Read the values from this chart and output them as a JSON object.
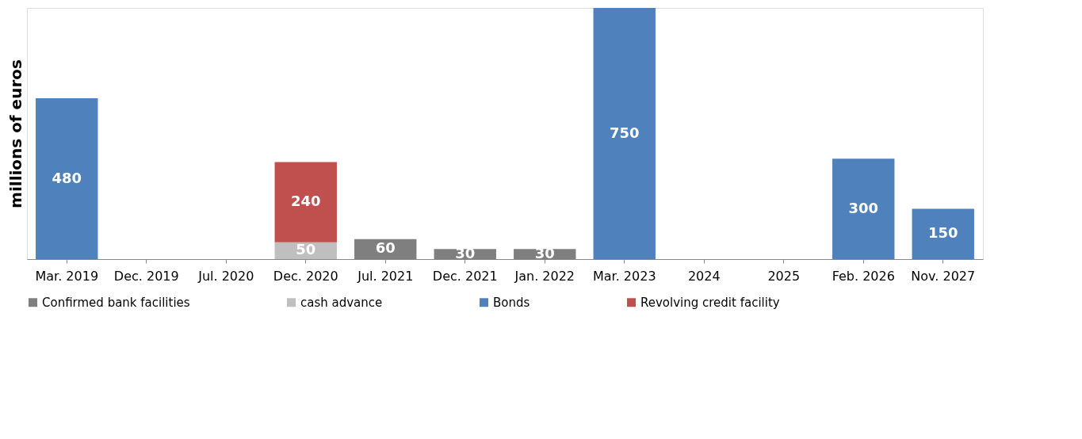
{
  "chart_data": {
    "type": "bar",
    "stacked": true,
    "ylabel": "millions  of euros",
    "data_labels": true,
    "legend": "bottom",
    "grid": false,
    "categories": [
      "Mar. 2019",
      "Dec. 2019",
      "Jul. 2020",
      "Dec. 2020",
      "Jul. 2021",
      "Dec. 2021",
      "Jan. 2022",
      "Mar. 2023",
      "2024",
      "2025",
      "Feb. 2026",
      "Nov. 2027"
    ],
    "series": [
      {
        "name": "Confirmed bank facilities",
        "color": "#7f7f7f",
        "values": [
          null,
          null,
          null,
          null,
          60,
          30,
          30,
          null,
          null,
          null,
          null,
          null
        ]
      },
      {
        "name": "cash advance",
        "color": "#bfbfbf",
        "values": [
          null,
          null,
          null,
          50,
          null,
          null,
          null,
          null,
          null,
          null,
          null,
          null
        ]
      },
      {
        "name": "Bonds",
        "color": "#4f81bd",
        "values": [
          480,
          null,
          null,
          null,
          null,
          null,
          null,
          750,
          null,
          null,
          300,
          150
        ]
      },
      {
        "name": "Revolving credit facility",
        "color": "#c0504d",
        "values": [
          null,
          null,
          null,
          240,
          null,
          null,
          null,
          null,
          null,
          null,
          null,
          null
        ]
      }
    ]
  }
}
